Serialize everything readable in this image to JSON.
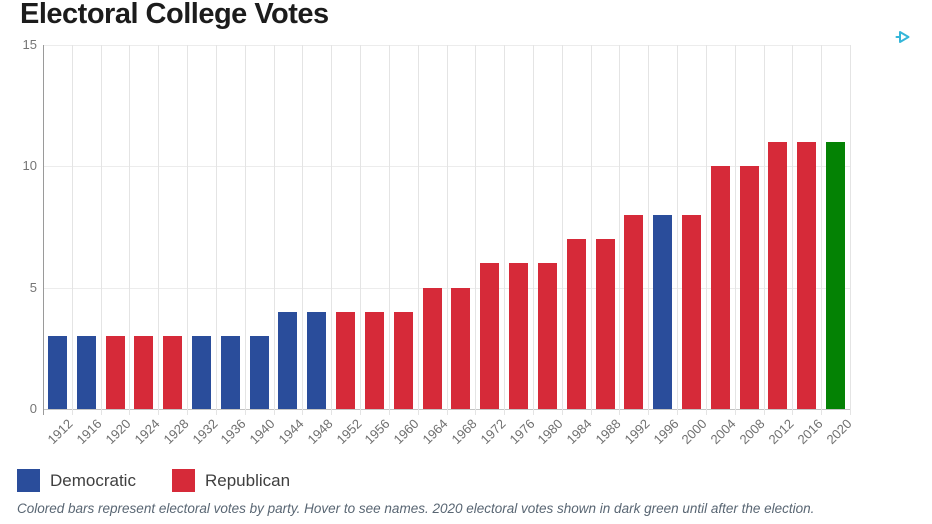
{
  "title": "Electoral College Votes",
  "adchoices": {
    "icon": "adchoices-triangle",
    "color": "#35b6d9"
  },
  "chart_data": {
    "type": "bar",
    "title": "Electoral College Votes",
    "xlabel": "",
    "ylabel": "",
    "ylim": [
      0,
      15
    ],
    "yticks": [
      0,
      5,
      10,
      15
    ],
    "grid": true,
    "categories": [
      "1912",
      "1916",
      "1920",
      "1924",
      "1928",
      "1932",
      "1936",
      "1940",
      "1944",
      "1948",
      "1952",
      "1956",
      "1960",
      "1964",
      "1968",
      "1972",
      "1976",
      "1980",
      "1984",
      "1988",
      "1992",
      "1996",
      "2000",
      "2004",
      "2008",
      "2012",
      "2016",
      "2020"
    ],
    "values": [
      3,
      3,
      3,
      3,
      3,
      3,
      3,
      3,
      4,
      4,
      4,
      4,
      4,
      5,
      5,
      6,
      6,
      6,
      7,
      7,
      8,
      8,
      8,
      10,
      10,
      11,
      11,
      11
    ],
    "bar_parties": [
      "D",
      "D",
      "R",
      "R",
      "R",
      "D",
      "D",
      "D",
      "D",
      "D",
      "R",
      "R",
      "R",
      "R",
      "R",
      "R",
      "R",
      "R",
      "R",
      "R",
      "R",
      "D",
      "R",
      "R",
      "R",
      "R",
      "R",
      "G"
    ],
    "party_colors": {
      "D": "#2a4d9b",
      "R": "#d62a39",
      "G": "#048204"
    }
  },
  "legend": [
    {
      "label": "Democratic",
      "color": "#2a4d9b"
    },
    {
      "label": "Republican",
      "color": "#d62a39"
    }
  ],
  "footnote": "Colored bars represent electoral votes by party. Hover to see names. 2020 electoral votes shown in dark green until after the election."
}
